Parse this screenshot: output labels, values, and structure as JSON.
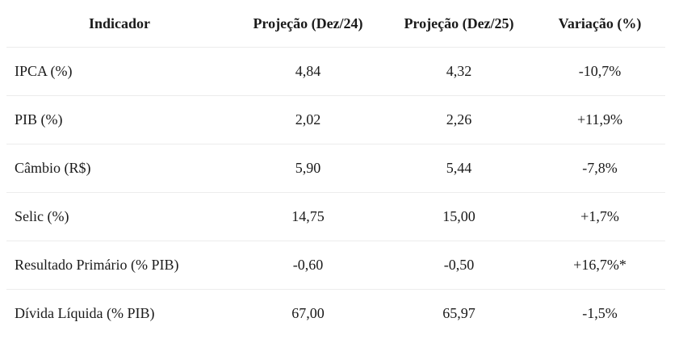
{
  "table": {
    "headers": [
      "Indicador",
      "Projeção (Dez/24)",
      "Projeção (Dez/25)",
      "Variação (%)"
    ],
    "rows": [
      [
        "IPCA (%)",
        "4,84",
        "4,32",
        "-10,7%"
      ],
      [
        "PIB (%)",
        "2,02",
        "2,26",
        "+11,9%"
      ],
      [
        "Câmbio (R$)",
        "5,90",
        "5,44",
        "-7,8%"
      ],
      [
        "Selic (%)",
        "14,75",
        "15,00",
        "+1,7%"
      ],
      [
        "Resultado Primário (% PIB)",
        "-0,60",
        "-0,50",
        "+16,7%*"
      ],
      [
        "Dívida Líquida (% PIB)",
        "67,00",
        "65,97",
        "-1,5%"
      ]
    ]
  }
}
